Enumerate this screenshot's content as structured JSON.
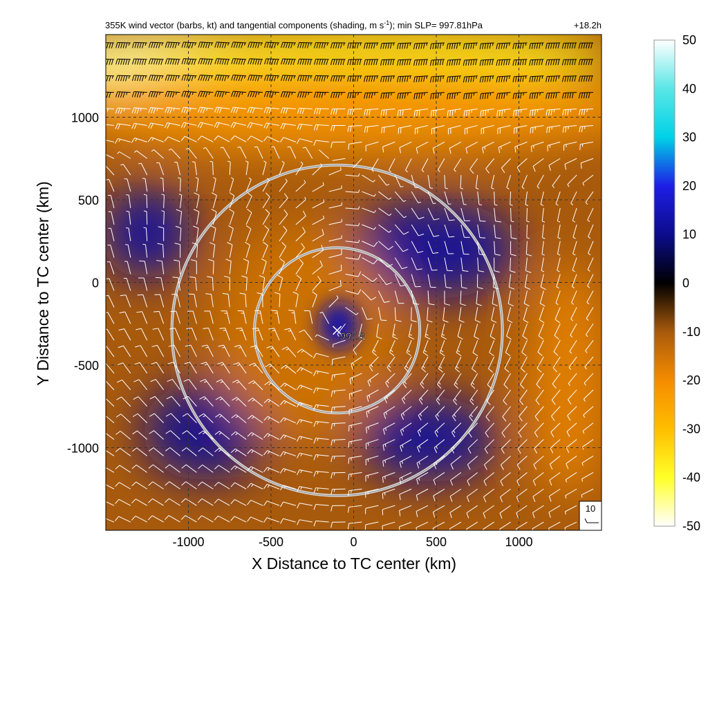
{
  "chart_data": {
    "type": "heatmap",
    "title": "355K wind vector (barbs, kt) and tangential components (shading, m s",
    "title_superscript": "-1",
    "title_tail": "); min SLP= 997.81hPa",
    "time_label": "+18.2h",
    "xlabel": "X Distance to TC center (km)",
    "ylabel": "Y Distance to TC center (km)",
    "xlim": [
      -1500,
      1500
    ],
    "ylim": [
      -1500,
      1500
    ],
    "xticks": [
      {
        "value": -1000,
        "label": "-1000"
      },
      {
        "value": -500,
        "label": "-500"
      },
      {
        "value": 0,
        "label": "0"
      },
      {
        "value": 500,
        "label": "500"
      },
      {
        "value": 1000,
        "label": "1000"
      }
    ],
    "yticks": [
      {
        "value": 1000,
        "label": "1000"
      },
      {
        "value": 500,
        "label": "500"
      },
      {
        "value": 0,
        "label": "0"
      },
      {
        "value": -500,
        "label": "-500"
      },
      {
        "value": -1000,
        "label": "-1000"
      }
    ],
    "grid": "dashed",
    "colorbar": {
      "min": -50,
      "max": 50,
      "ticks": [
        {
          "value": 50,
          "label": "50"
        },
        {
          "value": 40,
          "label": "40"
        },
        {
          "value": 30,
          "label": "30"
        },
        {
          "value": 20,
          "label": "20"
        },
        {
          "value": 10,
          "label": "10"
        },
        {
          "value": 0,
          "label": "0"
        },
        {
          "value": -10,
          "label": "-10"
        },
        {
          "value": -20,
          "label": "-20"
        },
        {
          "value": -30,
          "label": "-30"
        },
        {
          "value": -40,
          "label": "-40"
        },
        {
          "value": -50,
          "label": "-50"
        }
      ],
      "colors": [
        {
          "value": -50,
          "color": "#ffffff"
        },
        {
          "value": -40,
          "color": "#ffff28"
        },
        {
          "value": -30,
          "color": "#ffbe00"
        },
        {
          "value": -20,
          "color": "#f58c00"
        },
        {
          "value": -10,
          "color": "#a85a0c"
        },
        {
          "value": 0,
          "color": "#000000"
        },
        {
          "value": 10,
          "color": "#0c0c8c"
        },
        {
          "value": 20,
          "color": "#1e1ee6"
        },
        {
          "value": 30,
          "color": "#00d2e6"
        },
        {
          "value": 40,
          "color": "#5ae6e6"
        },
        {
          "value": 50,
          "color": "#ffffff"
        }
      ]
    },
    "center_marker": {
      "x": -100,
      "y": -290,
      "label": "997.8"
    },
    "range_rings": [
      {
        "center_x": -100,
        "center_y": -290,
        "radius": 500
      },
      {
        "center_x": -100,
        "center_y": -290,
        "radius": 1000
      }
    ],
    "reference_barb": {
      "label": "10"
    },
    "shading_features": [
      {
        "kind": "jet",
        "value": -45,
        "x": -1100,
        "y": 1350,
        "rx": 900,
        "ry": 180
      },
      {
        "kind": "jet",
        "value": -38,
        "x": 200,
        "y": 1380,
        "rx": 1400,
        "ry": 160
      },
      {
        "kind": "band",
        "value": -22,
        "x": 0,
        "y": 1050,
        "rx": 1800,
        "ry": 260
      },
      {
        "kind": "core",
        "value": 14,
        "x": -90,
        "y": -260,
        "rx": 130,
        "ry": 150
      },
      {
        "kind": "cyclonic",
        "value": 12,
        "x": 480,
        "y": 200,
        "rx": 520,
        "ry": 300
      },
      {
        "kind": "cyclonic",
        "value": 12,
        "x": -1250,
        "y": 300,
        "rx": 280,
        "ry": 280
      },
      {
        "kind": "cyclonic",
        "value": 11,
        "x": -900,
        "y": -900,
        "rx": 380,
        "ry": 300
      },
      {
        "kind": "cyclonic",
        "value": 12,
        "x": 450,
        "y": -950,
        "rx": 420,
        "ry": 260
      },
      {
        "kind": "anticyclonic",
        "value": -15,
        "x": -300,
        "y": -300,
        "rx": 550,
        "ry": 650
      },
      {
        "kind": "anticyclonic",
        "value": -18,
        "x": 1300,
        "y": -600,
        "rx": 250,
        "ry": 700
      }
    ],
    "wind_field": {
      "units": "kt",
      "center": {
        "x": -100,
        "y": -290
      },
      "vortex_speed": 12,
      "vortex_radius": 650,
      "jet_speed": 60,
      "jet_axis_y": 1350,
      "jet_width": 400,
      "ambient_speed": 6
    }
  }
}
